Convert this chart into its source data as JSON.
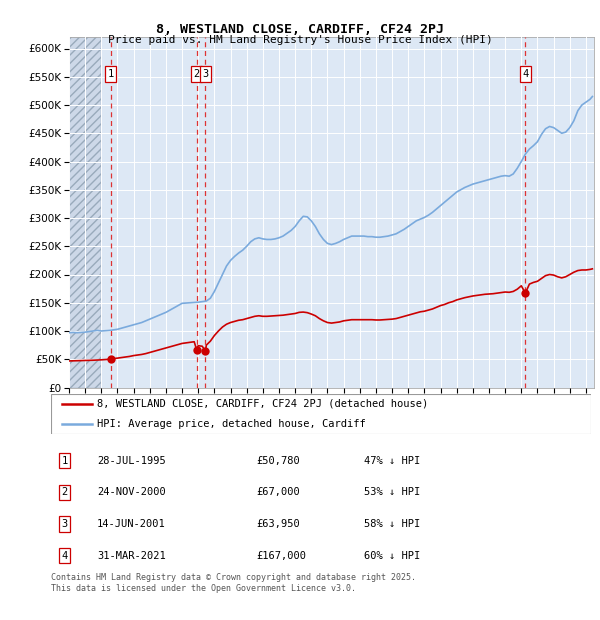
{
  "title1": "8, WESTLAND CLOSE, CARDIFF, CF24 2PJ",
  "title2": "Price paid vs. HM Land Registry's House Price Index (HPI)",
  "ylim": [
    0,
    620000
  ],
  "yticks": [
    0,
    50000,
    100000,
    150000,
    200000,
    250000,
    300000,
    350000,
    400000,
    450000,
    500000,
    550000,
    600000
  ],
  "ytick_labels": [
    "£0",
    "£50K",
    "£100K",
    "£150K",
    "£200K",
    "£250K",
    "£300K",
    "£350K",
    "£400K",
    "£450K",
    "£500K",
    "£550K",
    "£600K"
  ],
  "xlim_start": 1993.0,
  "xlim_end": 2025.5,
  "transactions": [
    {
      "year": 1995.57,
      "price": 50780,
      "label": "1"
    },
    {
      "year": 2000.9,
      "price": 67000,
      "label": "2"
    },
    {
      "year": 2001.45,
      "price": 63950,
      "label": "3"
    },
    {
      "year": 2021.25,
      "price": 167000,
      "label": "4"
    }
  ],
  "transaction_color": "#cc0000",
  "vline_color": "#dd3333",
  "hpi_color": "#7aaadd",
  "hpi_data": [
    [
      1993.0,
      97000
    ],
    [
      1993.25,
      97500
    ],
    [
      1993.5,
      97000
    ],
    [
      1993.75,
      97500
    ],
    [
      1994.0,
      98000
    ],
    [
      1994.25,
      99000
    ],
    [
      1994.5,
      100000
    ],
    [
      1994.75,
      101000
    ],
    [
      1995.0,
      100000
    ],
    [
      1995.25,
      100500
    ],
    [
      1995.5,
      101000
    ],
    [
      1995.75,
      102000
    ],
    [
      1996.0,
      103000
    ],
    [
      1996.25,
      105000
    ],
    [
      1996.5,
      107000
    ],
    [
      1996.75,
      109000
    ],
    [
      1997.0,
      111000
    ],
    [
      1997.25,
      113000
    ],
    [
      1997.5,
      115000
    ],
    [
      1997.75,
      118000
    ],
    [
      1998.0,
      121000
    ],
    [
      1998.25,
      124000
    ],
    [
      1998.5,
      127000
    ],
    [
      1998.75,
      130000
    ],
    [
      1999.0,
      133000
    ],
    [
      1999.25,
      137000
    ],
    [
      1999.5,
      141000
    ],
    [
      1999.75,
      145000
    ],
    [
      2000.0,
      149000
    ],
    [
      2000.25,
      149500
    ],
    [
      2000.5,
      150000
    ],
    [
      2000.75,
      150500
    ],
    [
      2001.0,
      151000
    ],
    [
      2001.25,
      152000
    ],
    [
      2001.5,
      153000
    ],
    [
      2001.75,
      158000
    ],
    [
      2002.0,
      170000
    ],
    [
      2002.25,
      185000
    ],
    [
      2002.5,
      200000
    ],
    [
      2002.75,
      215000
    ],
    [
      2003.0,
      225000
    ],
    [
      2003.25,
      232000
    ],
    [
      2003.5,
      238000
    ],
    [
      2003.75,
      243000
    ],
    [
      2004.0,
      250000
    ],
    [
      2004.25,
      258000
    ],
    [
      2004.5,
      263000
    ],
    [
      2004.75,
      265000
    ],
    [
      2005.0,
      263000
    ],
    [
      2005.25,
      262000
    ],
    [
      2005.5,
      262000
    ],
    [
      2005.75,
      263000
    ],
    [
      2006.0,
      265000
    ],
    [
      2006.25,
      268000
    ],
    [
      2006.5,
      273000
    ],
    [
      2006.75,
      278000
    ],
    [
      2007.0,
      285000
    ],
    [
      2007.25,
      295000
    ],
    [
      2007.5,
      303000
    ],
    [
      2007.75,
      302000
    ],
    [
      2008.0,
      295000
    ],
    [
      2008.25,
      285000
    ],
    [
      2008.5,
      272000
    ],
    [
      2008.75,
      262000
    ],
    [
      2009.0,
      255000
    ],
    [
      2009.25,
      253000
    ],
    [
      2009.5,
      255000
    ],
    [
      2009.75,
      258000
    ],
    [
      2010.0,
      262000
    ],
    [
      2010.25,
      265000
    ],
    [
      2010.5,
      268000
    ],
    [
      2010.75,
      268000
    ],
    [
      2011.0,
      268000
    ],
    [
      2011.25,
      268000
    ],
    [
      2011.5,
      267000
    ],
    [
      2011.75,
      267000
    ],
    [
      2012.0,
      266000
    ],
    [
      2012.25,
      266000
    ],
    [
      2012.5,
      267000
    ],
    [
      2012.75,
      268000
    ],
    [
      2013.0,
      270000
    ],
    [
      2013.25,
      272000
    ],
    [
      2013.5,
      276000
    ],
    [
      2013.75,
      280000
    ],
    [
      2014.0,
      285000
    ],
    [
      2014.25,
      290000
    ],
    [
      2014.5,
      295000
    ],
    [
      2014.75,
      298000
    ],
    [
      2015.0,
      301000
    ],
    [
      2015.25,
      305000
    ],
    [
      2015.5,
      310000
    ],
    [
      2015.75,
      316000
    ],
    [
      2016.0,
      322000
    ],
    [
      2016.25,
      328000
    ],
    [
      2016.5,
      334000
    ],
    [
      2016.75,
      340000
    ],
    [
      2017.0,
      346000
    ],
    [
      2017.25,
      350000
    ],
    [
      2017.5,
      354000
    ],
    [
      2017.75,
      357000
    ],
    [
      2018.0,
      360000
    ],
    [
      2018.25,
      362000
    ],
    [
      2018.5,
      364000
    ],
    [
      2018.75,
      366000
    ],
    [
      2019.0,
      368000
    ],
    [
      2019.25,
      370000
    ],
    [
      2019.5,
      372000
    ],
    [
      2019.75,
      374000
    ],
    [
      2020.0,
      375000
    ],
    [
      2020.25,
      374000
    ],
    [
      2020.5,
      378000
    ],
    [
      2020.75,
      388000
    ],
    [
      2021.0,
      400000
    ],
    [
      2021.25,
      413000
    ],
    [
      2021.5,
      422000
    ],
    [
      2021.75,
      428000
    ],
    [
      2022.0,
      435000
    ],
    [
      2022.25,
      448000
    ],
    [
      2022.5,
      458000
    ],
    [
      2022.75,
      462000
    ],
    [
      2023.0,
      460000
    ],
    [
      2023.25,
      455000
    ],
    [
      2023.5,
      450000
    ],
    [
      2023.75,
      452000
    ],
    [
      2024.0,
      460000
    ],
    [
      2024.25,
      472000
    ],
    [
      2024.5,
      490000
    ],
    [
      2024.75,
      500000
    ],
    [
      2025.0,
      505000
    ],
    [
      2025.25,
      510000
    ],
    [
      2025.4,
      515000
    ]
  ],
  "sold_data": [
    [
      1993.0,
      47000
    ],
    [
      1993.25,
      47200
    ],
    [
      1993.5,
      47300
    ],
    [
      1993.75,
      47500
    ],
    [
      1994.0,
      47700
    ],
    [
      1994.25,
      48000
    ],
    [
      1994.5,
      48300
    ],
    [
      1994.75,
      48600
    ],
    [
      1995.0,
      49000
    ],
    [
      1995.25,
      49500
    ],
    [
      1995.5,
      50000
    ],
    [
      1995.57,
      50780
    ],
    [
      1995.75,
      51000
    ],
    [
      1996.0,
      52000
    ],
    [
      1996.25,
      53000
    ],
    [
      1996.5,
      54000
    ],
    [
      1996.75,
      55000
    ],
    [
      1997.0,
      56500
    ],
    [
      1997.25,
      57500
    ],
    [
      1997.5,
      58500
    ],
    [
      1997.75,
      60000
    ],
    [
      1998.0,
      62000
    ],
    [
      1998.25,
      64000
    ],
    [
      1998.5,
      66000
    ],
    [
      1998.75,
      68000
    ],
    [
      1999.0,
      70000
    ],
    [
      1999.25,
      72000
    ],
    [
      1999.5,
      74000
    ],
    [
      1999.75,
      76000
    ],
    [
      2000.0,
      78000
    ],
    [
      2000.25,
      79000
    ],
    [
      2000.5,
      80000
    ],
    [
      2000.75,
      81000
    ],
    [
      2000.9,
      67000
    ],
    [
      2001.0,
      74000
    ],
    [
      2001.25,
      73000
    ],
    [
      2001.45,
      63950
    ],
    [
      2001.5,
      75000
    ],
    [
      2001.75,
      82000
    ],
    [
      2002.0,
      92000
    ],
    [
      2002.25,
      100000
    ],
    [
      2002.5,
      107000
    ],
    [
      2002.75,
      112000
    ],
    [
      2003.0,
      115000
    ],
    [
      2003.25,
      117000
    ],
    [
      2003.5,
      119000
    ],
    [
      2003.75,
      120000
    ],
    [
      2004.0,
      122000
    ],
    [
      2004.25,
      124000
    ],
    [
      2004.5,
      126000
    ],
    [
      2004.75,
      127000
    ],
    [
      2005.0,
      126000
    ],
    [
      2005.25,
      126000
    ],
    [
      2005.5,
      126500
    ],
    [
      2005.75,
      127000
    ],
    [
      2006.0,
      127500
    ],
    [
      2006.25,
      128000
    ],
    [
      2006.5,
      129000
    ],
    [
      2006.75,
      130000
    ],
    [
      2007.0,
      131000
    ],
    [
      2007.25,
      133000
    ],
    [
      2007.5,
      133500
    ],
    [
      2007.75,
      132500
    ],
    [
      2008.0,
      130000
    ],
    [
      2008.25,
      127000
    ],
    [
      2008.5,
      122000
    ],
    [
      2008.75,
      118000
    ],
    [
      2009.0,
      115000
    ],
    [
      2009.25,
      114000
    ],
    [
      2009.5,
      115000
    ],
    [
      2009.75,
      116000
    ],
    [
      2010.0,
      118000
    ],
    [
      2010.25,
      119000
    ],
    [
      2010.5,
      120000
    ],
    [
      2010.75,
      120000
    ],
    [
      2011.0,
      120000
    ],
    [
      2011.25,
      120000
    ],
    [
      2011.5,
      120000
    ],
    [
      2011.75,
      120000
    ],
    [
      2012.0,
      119500
    ],
    [
      2012.25,
      119500
    ],
    [
      2012.5,
      120000
    ],
    [
      2012.75,
      120500
    ],
    [
      2013.0,
      121000
    ],
    [
      2013.25,
      122000
    ],
    [
      2013.5,
      124000
    ],
    [
      2013.75,
      126000
    ],
    [
      2014.0,
      128000
    ],
    [
      2014.25,
      130000
    ],
    [
      2014.5,
      132000
    ],
    [
      2014.75,
      134000
    ],
    [
      2015.0,
      135000
    ],
    [
      2015.25,
      137000
    ],
    [
      2015.5,
      139000
    ],
    [
      2015.75,
      142000
    ],
    [
      2016.0,
      145000
    ],
    [
      2016.25,
      147000
    ],
    [
      2016.5,
      150000
    ],
    [
      2016.75,
      152000
    ],
    [
      2017.0,
      155000
    ],
    [
      2017.25,
      157000
    ],
    [
      2017.5,
      159000
    ],
    [
      2017.75,
      160500
    ],
    [
      2018.0,
      162000
    ],
    [
      2018.25,
      163000
    ],
    [
      2018.5,
      164000
    ],
    [
      2018.75,
      165000
    ],
    [
      2019.0,
      165500
    ],
    [
      2019.25,
      166000
    ],
    [
      2019.5,
      167000
    ],
    [
      2019.75,
      168000
    ],
    [
      2020.0,
      169000
    ],
    [
      2020.25,
      168500
    ],
    [
      2020.5,
      170000
    ],
    [
      2020.75,
      174000
    ],
    [
      2021.0,
      180000
    ],
    [
      2021.25,
      167000
    ],
    [
      2021.5,
      183000
    ],
    [
      2021.75,
      186000
    ],
    [
      2022.0,
      188000
    ],
    [
      2022.25,
      193000
    ],
    [
      2022.5,
      198000
    ],
    [
      2022.75,
      200000
    ],
    [
      2023.0,
      199000
    ],
    [
      2023.25,
      196000
    ],
    [
      2023.5,
      194000
    ],
    [
      2023.75,
      196000
    ],
    [
      2024.0,
      200000
    ],
    [
      2024.25,
      204000
    ],
    [
      2024.5,
      207000
    ],
    [
      2024.75,
      208000
    ],
    [
      2025.0,
      208000
    ],
    [
      2025.25,
      209000
    ],
    [
      2025.4,
      210000
    ]
  ],
  "legend_entries": [
    {
      "label": "8, WESTLAND CLOSE, CARDIFF, CF24 2PJ (detached house)",
      "color": "#cc0000"
    },
    {
      "label": "HPI: Average price, detached house, Cardiff",
      "color": "#7aaadd"
    }
  ],
  "table_rows": [
    {
      "num": "1",
      "date": "28-JUL-1995",
      "price": "£50,780",
      "hpi": "47% ↓ HPI"
    },
    {
      "num": "2",
      "date": "24-NOV-2000",
      "price": "£67,000",
      "hpi": "53% ↓ HPI"
    },
    {
      "num": "3",
      "date": "14-JUN-2001",
      "price": "£63,950",
      "hpi": "58% ↓ HPI"
    },
    {
      "num": "4",
      "date": "31-MAR-2021",
      "price": "£167,000",
      "hpi": "60% ↓ HPI"
    }
  ],
  "footnote": "Contains HM Land Registry data © Crown copyright and database right 2025.\nThis data is licensed under the Open Government Licence v3.0.",
  "plot_bg": "#dde8f5",
  "hatch_end_year": 1995.0
}
